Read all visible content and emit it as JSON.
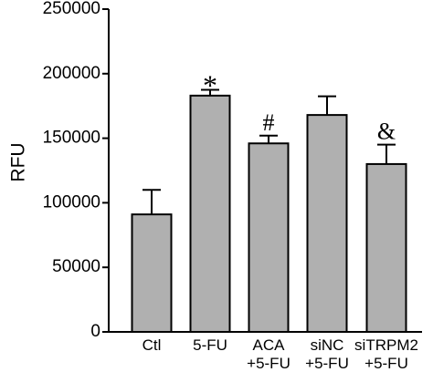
{
  "chart_data": {
    "type": "bar",
    "ylabel": "RFU",
    "xlabel": "",
    "ylim": [
      0,
      250000
    ],
    "yticks": [
      0,
      50000,
      100000,
      150000,
      200000,
      250000
    ],
    "ytick_labels": [
      "0",
      "50000",
      "100000",
      "150000",
      "200000",
      "250000"
    ],
    "categories": [
      {
        "line1": "Ctl",
        "line2": ""
      },
      {
        "line1": "5-FU",
        "line2": ""
      },
      {
        "line1": "ACA",
        "line2": "+5-FU"
      },
      {
        "line1": "siNC",
        "line2": "+5-FU"
      },
      {
        "line1": "siTRPM2",
        "line2": "+5-FU"
      }
    ],
    "values": [
      91000,
      183000,
      146000,
      168000,
      130000
    ],
    "errors": [
      19000,
      4500,
      6000,
      14500,
      15000
    ],
    "annotations": [
      "",
      "*",
      "#",
      "",
      "&"
    ],
    "bar_color": "#b0b0b0",
    "edge_color": "#000000",
    "grid": false
  }
}
